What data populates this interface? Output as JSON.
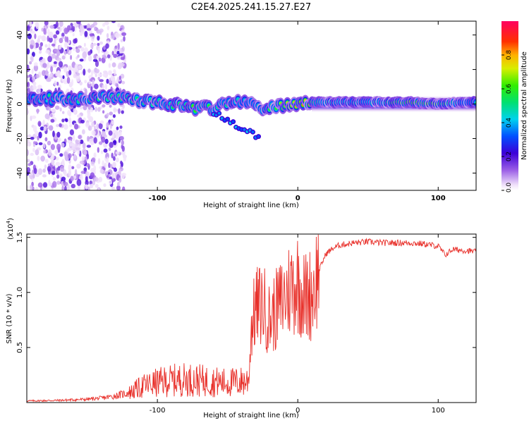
{
  "figure_title": "C2E4.2025.241.15.27.E27",
  "chart_data": [
    {
      "type": "heatmap",
      "title": "C2E4.2025.241.15.27.E27",
      "xlabel": "Height of straight line (km)",
      "ylabel": "Frequency (Hz)",
      "xlim": [
        -193,
        127
      ],
      "ylim": [
        -50,
        48
      ],
      "x_ticks": [
        -100,
        0,
        100
      ],
      "x_tick_labels": [
        "-100",
        "0",
        "100"
      ],
      "y_ticks": [
        -40,
        -20,
        0,
        20,
        40
      ],
      "y_tick_labels": [
        "-40",
        "-20",
        "0",
        "20",
        "40"
      ],
      "colorbar": {
        "label": "Normalized spectral amplitude",
        "range": [
          0,
          1
        ],
        "ticks": [
          0.0,
          0.2,
          0.4,
          0.6,
          0.8
        ],
        "tick_labels": [
          "0.0",
          "0.2",
          "0.4",
          "0.6",
          "0.8"
        ]
      },
      "ridge": {
        "description": "dominant frequency track near 0 Hz",
        "x": [
          -190,
          -160,
          -130,
          -110,
          -90,
          -75,
          -60,
          -45,
          -35,
          -25,
          -15,
          -5,
          5,
          20,
          40,
          60,
          80,
          100,
          120
        ],
        "frequency": [
          3,
          3,
          4,
          1,
          0,
          -3,
          -2,
          1,
          0,
          -2,
          -1,
          0,
          1,
          1,
          1,
          1,
          1,
          0,
          1
        ],
        "amplitude": [
          0.45,
          0.5,
          0.55,
          0.5,
          0.55,
          0.6,
          0.55,
          0.5,
          0.45,
          0.5,
          0.6,
          0.75,
          0.8,
          0.6,
          0.55,
          0.6,
          0.85,
          0.75,
          0.5
        ]
      }
    },
    {
      "type": "line",
      "xlabel": "Height of straight line (km)",
      "ylabel": "SNR (10 * v/v)",
      "y_scale_label": "(x10",
      "y_scale_exponent": "4",
      "y_scale_suffix": ")",
      "xlim": [
        -193,
        127
      ],
      "ylim": [
        0,
        15300
      ],
      "x_ticks": [
        -100,
        0,
        100
      ],
      "x_tick_labels": [
        "-100",
        "0",
        "100"
      ],
      "y_ticks": [
        5000,
        10000,
        15000
      ],
      "y_tick_labels": [
        "0.5",
        "1.0",
        "1.5"
      ],
      "color": "#e8302a",
      "series": [
        {
          "name": "SNR",
          "x": [
            -193,
            -170,
            -150,
            -140,
            -130,
            -120,
            -110,
            -100,
            -90,
            -80,
            -70,
            -60,
            -50,
            -40,
            -35,
            -33,
            -30,
            -25,
            -20,
            -15,
            -10,
            -5,
            0,
            5,
            10,
            15,
            20,
            25,
            30,
            40,
            50,
            60,
            70,
            80,
            90,
            100,
            105,
            110,
            120,
            127
          ],
          "y": [
            150,
            200,
            300,
            400,
            600,
            900,
            1500,
            1800,
            2000,
            2100,
            2000,
            1900,
            1800,
            1900,
            2000,
            7000,
            8500,
            9000,
            7500,
            8500,
            9500,
            10500,
            11000,
            9500,
            10000,
            12000,
            13500,
            14000,
            14300,
            14500,
            14600,
            14500,
            14500,
            14500,
            14400,
            14200,
            13400,
            13900,
            13800,
            13700
          ]
        }
      ]
    }
  ]
}
